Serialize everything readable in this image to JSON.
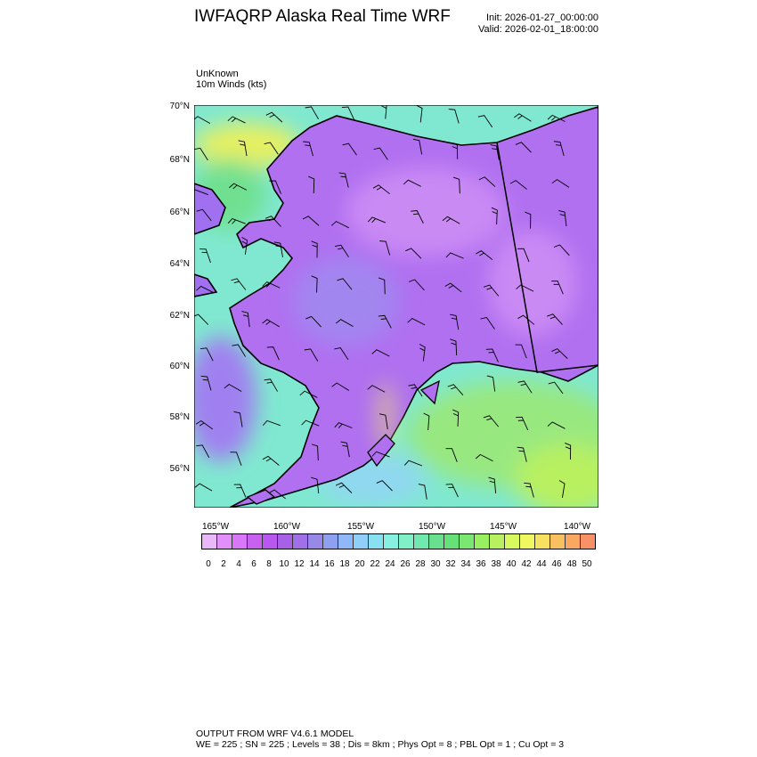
{
  "header": {
    "title": "IWFAQRP Alaska Real Time WRF",
    "init": "Init: 2026-01-27_00:00:00",
    "valid": "Valid: 2026-02-01_18:00:00"
  },
  "field": {
    "name": "UnKnown",
    "description": "10m Winds   (kts)"
  },
  "map": {
    "lat_labels": [
      "70°N",
      "68°N",
      "66°N",
      "64°N",
      "62°N",
      "60°N",
      "58°N",
      "56°N"
    ],
    "lon_labels": [
      "165°W",
      "160°W",
      "155°W",
      "150°W",
      "145°W",
      "140°W"
    ],
    "land_color": "#b070f0",
    "ocean_color": "#80e8d0",
    "gulf_color": "#98e890"
  },
  "colorbar": {
    "unit": "kts",
    "labels": [
      "0",
      "2",
      "4",
      "6",
      "8",
      "10",
      "12",
      "14",
      "16",
      "18",
      "20",
      "22",
      "24",
      "26",
      "28",
      "30",
      "32",
      "34",
      "36",
      "38",
      "40",
      "42",
      "44",
      "46",
      "48",
      "50"
    ],
    "colors": [
      "#e8b8f8",
      "#e090f8",
      "#d878f8",
      "#c860f0",
      "#b858f0",
      "#a860e8",
      "#a070e8",
      "#9888e8",
      "#90a0f0",
      "#90b8f8",
      "#90d0f8",
      "#88e0f0",
      "#88f0e0",
      "#80f0c8",
      "#70e8b0",
      "#68e090",
      "#68e078",
      "#78e870",
      "#98f060",
      "#b8f060",
      "#d8f860",
      "#f0f860",
      "#f8e060",
      "#f8c060",
      "#f8a860",
      "#f89068",
      "#f07868",
      "#e87070",
      "#e88080",
      "#f0a8a0",
      "#f8c8b0",
      "#f8d8b8"
    ]
  },
  "footer": {
    "line1": "OUTPUT FROM WRF V4.6.1 MODEL",
    "line2": "WE = 225 ; SN = 225 ; Levels = 38 ; Dis = 8km ; Phys Opt = 8 ; PBL Opt = 1 ; Cu Opt = 3"
  }
}
